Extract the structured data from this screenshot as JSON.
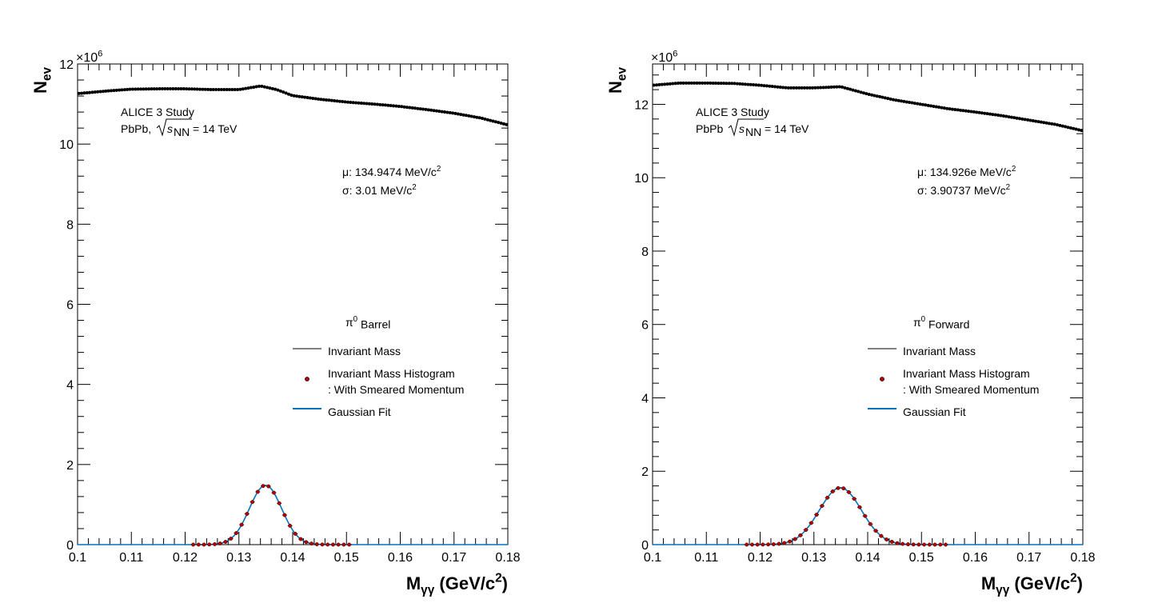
{
  "chart_data": [
    {
      "type": "scatter",
      "xlim": [
        0.1,
        0.18
      ],
      "ylim": [
        0,
        12
      ],
      "x_ticks": [
        "0.1",
        "0.11",
        "0.12",
        "0.13",
        "0.14",
        "0.15",
        "0.16",
        "0.17",
        "0.18"
      ],
      "y_ticks": [
        "0",
        "2",
        "4",
        "6",
        "8",
        "10",
        "12"
      ],
      "y_multiplier": "×10",
      "y_multiplier_exp": "6",
      "xlabel": {
        "main": "M",
        "sub": "γγ",
        "unit": " (GeV/c",
        "sup": "2",
        "close": ")"
      },
      "ylabel": {
        "main": "N",
        "sub": "ev"
      },
      "annotation": {
        "line1": "ALICE 3 Study",
        "system": "PbPb,",
        "sqrt_var": "s",
        "sqrt_sub": "NN",
        "energy": "= 14 TeV"
      },
      "fit_params": {
        "mu": "μ: 134.9474 MeV/c",
        "mu_sup": "2",
        "sigma": "σ: 3.01 MeV/c",
        "sigma_sup": "2"
      },
      "legend_title": {
        "symbol": "π",
        "sup": "0",
        "text": " Barrel"
      },
      "legend": [
        {
          "name": "Invariant Mass",
          "kind": "line",
          "color": "#000000"
        },
        {
          "name": "Invariant Mass Histogram",
          "name2": ": With Smeared Momentum",
          "kind": "marker",
          "color": "#b30000"
        },
        {
          "name": "Gaussian Fit",
          "kind": "line",
          "color": "#0072bd"
        }
      ],
      "background": {
        "name": "Invariant Mass",
        "x": [
          0.1,
          0.105,
          0.11,
          0.115,
          0.12,
          0.125,
          0.13,
          0.134,
          0.137,
          0.14,
          0.145,
          0.15,
          0.155,
          0.16,
          0.165,
          0.17,
          0.175,
          0.18
        ],
        "y": [
          11.26,
          11.32,
          11.37,
          11.38,
          11.38,
          11.36,
          11.36,
          11.45,
          11.36,
          11.21,
          11.12,
          11.05,
          11.0,
          10.94,
          10.86,
          10.77,
          10.65,
          10.48
        ]
      },
      "signal": {
        "name": "Invariant Mass Histogram",
        "range": [
          0.121,
          0.151
        ],
        "mean": 0.1349474,
        "sigma": 0.00301,
        "amplitude": 1.48
      },
      "fit": {
        "name": "Gaussian Fit",
        "mean": 0.1349474,
        "sigma": 0.00301,
        "amplitude": 1.48
      }
    },
    {
      "type": "scatter",
      "xlim": [
        0.1,
        0.18
      ],
      "ylim": [
        0,
        13.1
      ],
      "x_ticks": [
        "0.1",
        "0.11",
        "0.12",
        "0.13",
        "0.14",
        "0.15",
        "0.16",
        "0.17",
        "0.18"
      ],
      "y_ticks": [
        "0",
        "2",
        "4",
        "6",
        "8",
        "10",
        "12"
      ],
      "y_multiplier": "×10",
      "y_multiplier_exp": "6",
      "xlabel": {
        "main": "M",
        "sub": "γγ",
        "unit": " (GeV/c",
        "sup": "2",
        "close": ")"
      },
      "ylabel": {
        "main": "N",
        "sub": "ev"
      },
      "annotation": {
        "line1": "ALICE 3 Study",
        "system": "PbPb",
        "sqrt_var": "s",
        "sqrt_sub": "NN",
        "energy": "= 14 TeV"
      },
      "fit_params": {
        "mu": "μ: 134.926e MeV/c",
        "mu_sup": "2",
        "sigma": "σ: 3.90737 MeV/c",
        "sigma_sup": "2"
      },
      "legend_title": {
        "symbol": "π",
        "sup": "0",
        "text": " Forward"
      },
      "legend": [
        {
          "name": "Invariant Mass",
          "kind": "line",
          "color": "#000000"
        },
        {
          "name": "Invariant Mass Histogram",
          "name2": ": With Smeared Momentum",
          "kind": "marker",
          "color": "#b30000"
        },
        {
          "name": "Gaussian Fit",
          "kind": "line",
          "color": "#0072bd"
        }
      ],
      "background": {
        "name": "Invariant Mass",
        "x": [
          0.1,
          0.105,
          0.11,
          0.115,
          0.12,
          0.125,
          0.13,
          0.135,
          0.14,
          0.145,
          0.15,
          0.155,
          0.16,
          0.165,
          0.17,
          0.175,
          0.18
        ],
        "y": [
          12.52,
          12.58,
          12.58,
          12.57,
          12.52,
          12.45,
          12.45,
          12.48,
          12.28,
          12.12,
          12.0,
          11.88,
          11.79,
          11.69,
          11.57,
          11.45,
          11.28
        ]
      },
      "signal": {
        "name": "Invariant Mass Histogram",
        "range": [
          0.117,
          0.155
        ],
        "mean": 0.134926,
        "sigma": 0.00390737,
        "amplitude": 1.55
      },
      "fit": {
        "name": "Gaussian Fit",
        "mean": 0.134926,
        "sigma": 0.00390737,
        "amplitude": 1.55
      }
    }
  ]
}
